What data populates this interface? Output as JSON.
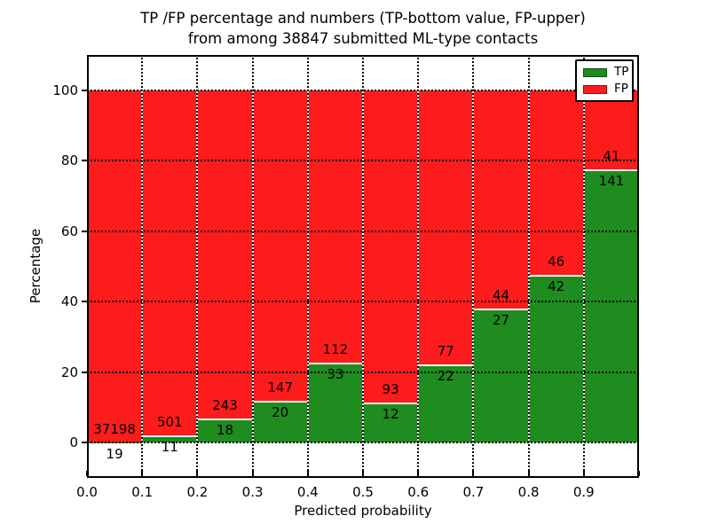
{
  "title": {
    "line1": "TP /FP percentage and numbers (TP-bottom value, FP-upper)",
    "line2": "from among 38847 submitted ML-type contacts"
  },
  "axes": {
    "x_label": "Predicted probability",
    "y_label": "Percentage",
    "x_tick_labels": [
      "0.0",
      "0.1",
      "0.2",
      "0.3",
      "0.4",
      "0.5",
      "0.6",
      "0.7",
      "0.8",
      "0.9"
    ],
    "y_tick_labels": [
      "0",
      "20",
      "40",
      "60",
      "80",
      "100"
    ],
    "y_tick_values": [
      0,
      20,
      40,
      60,
      80,
      100
    ],
    "xlim": [
      0.0,
      1.0
    ],
    "ylim": [
      -10,
      110
    ]
  },
  "legend": {
    "position": "upper right",
    "items": [
      {
        "label": "TP",
        "color": "#1e8c1e"
      },
      {
        "label": "FP",
        "color": "#fc1c1c"
      }
    ]
  },
  "colors": {
    "tp_green": "#1e8c1e",
    "fp_red": "#fc1c1c",
    "background": "#ffffff",
    "grid": "#000000",
    "bar_edge": "#ffffff"
  },
  "chart_data": {
    "type": "bar",
    "stacked": true,
    "normalized_to_100_percent": true,
    "title": "TP /FP percentage and numbers (TP-bottom value, FP-upper) from among 38847 submitted ML-type contacts",
    "xlabel": "Predicted probability",
    "ylabel": "Percentage",
    "xlim": [
      0.0,
      1.0
    ],
    "ylim": [
      -10,
      110
    ],
    "grid": "dotted both axes, ticks every 0.1 on x and 20 on y",
    "legend_position": "upper right",
    "total_contacts": 38847,
    "bin_edges": [
      0.0,
      0.1,
      0.2,
      0.3,
      0.4,
      0.5,
      0.6,
      0.7,
      0.8,
      0.9,
      1.0
    ],
    "bin_labels": [
      "0.0-0.1",
      "0.1-0.2",
      "0.2-0.3",
      "0.3-0.4",
      "0.4-0.5",
      "0.5-0.6",
      "0.6-0.7",
      "0.7-0.8",
      "0.8-0.9",
      "0.9-1.0"
    ],
    "series": [
      {
        "name": "TP",
        "color": "#1e8c1e",
        "position": "bottom",
        "counts": [
          19,
          11,
          18,
          20,
          33,
          12,
          22,
          27,
          42,
          141
        ],
        "percent": [
          0.05,
          2.15,
          6.9,
          11.98,
          22.76,
          11.43,
          22.22,
          38.03,
          47.73,
          77.47
        ]
      },
      {
        "name": "FP",
        "color": "#fc1c1c",
        "position": "top",
        "counts": [
          37198,
          501,
          243,
          147,
          112,
          93,
          77,
          44,
          46,
          41
        ],
        "percent": [
          99.95,
          97.85,
          93.1,
          88.02,
          77.24,
          88.57,
          77.78,
          61.97,
          52.27,
          22.53
        ]
      }
    ]
  }
}
